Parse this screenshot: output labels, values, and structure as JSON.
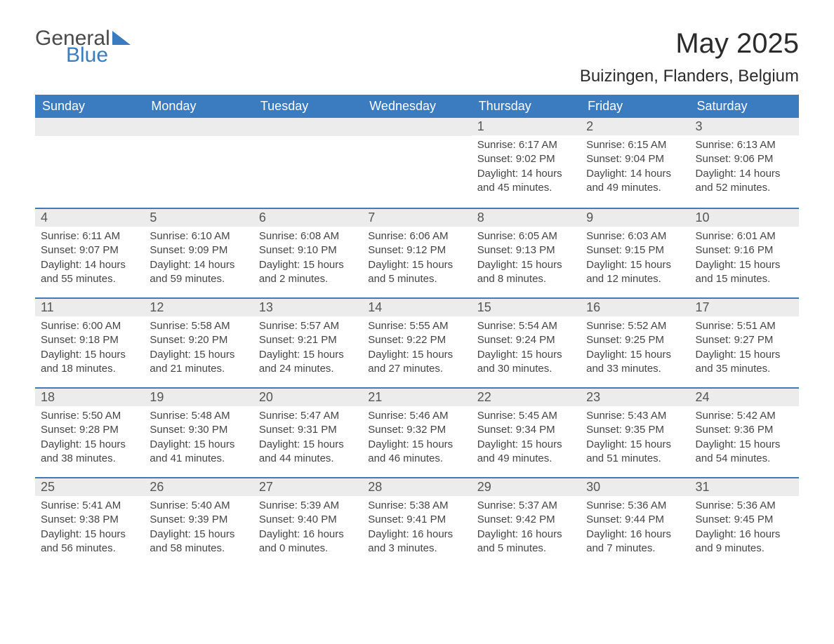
{
  "logo": {
    "text1": "General",
    "text2": "Blue",
    "color_general": "#4a4a4a",
    "color_blue": "#3b7bbf"
  },
  "title": {
    "month": "May 2025",
    "location": "Buizingen, Flanders, Belgium",
    "title_fontsize": 40,
    "location_fontsize": 24
  },
  "colors": {
    "header_bg": "#3b7bbf",
    "header_text": "#ffffff",
    "daynum_bg": "#ececec",
    "daynum_text": "#555555",
    "body_text": "#444444",
    "rule": "#3b7bbf",
    "page_bg": "#ffffff"
  },
  "typography": {
    "base_font": "Arial",
    "header_fontsize": 18,
    "daynum_fontsize": 18,
    "body_fontsize": 15
  },
  "calendar": {
    "type": "table",
    "columns": [
      "Sunday",
      "Monday",
      "Tuesday",
      "Wednesday",
      "Thursday",
      "Friday",
      "Saturday"
    ],
    "weeks": [
      [
        null,
        null,
        null,
        null,
        {
          "n": "1",
          "sunrise": "6:17 AM",
          "sunset": "9:02 PM",
          "daylight": "14 hours and 45 minutes."
        },
        {
          "n": "2",
          "sunrise": "6:15 AM",
          "sunset": "9:04 PM",
          "daylight": "14 hours and 49 minutes."
        },
        {
          "n": "3",
          "sunrise": "6:13 AM",
          "sunset": "9:06 PM",
          "daylight": "14 hours and 52 minutes."
        }
      ],
      [
        {
          "n": "4",
          "sunrise": "6:11 AM",
          "sunset": "9:07 PM",
          "daylight": "14 hours and 55 minutes."
        },
        {
          "n": "5",
          "sunrise": "6:10 AM",
          "sunset": "9:09 PM",
          "daylight": "14 hours and 59 minutes."
        },
        {
          "n": "6",
          "sunrise": "6:08 AM",
          "sunset": "9:10 PM",
          "daylight": "15 hours and 2 minutes."
        },
        {
          "n": "7",
          "sunrise": "6:06 AM",
          "sunset": "9:12 PM",
          "daylight": "15 hours and 5 minutes."
        },
        {
          "n": "8",
          "sunrise": "6:05 AM",
          "sunset": "9:13 PM",
          "daylight": "15 hours and 8 minutes."
        },
        {
          "n": "9",
          "sunrise": "6:03 AM",
          "sunset": "9:15 PM",
          "daylight": "15 hours and 12 minutes."
        },
        {
          "n": "10",
          "sunrise": "6:01 AM",
          "sunset": "9:16 PM",
          "daylight": "15 hours and 15 minutes."
        }
      ],
      [
        {
          "n": "11",
          "sunrise": "6:00 AM",
          "sunset": "9:18 PM",
          "daylight": "15 hours and 18 minutes."
        },
        {
          "n": "12",
          "sunrise": "5:58 AM",
          "sunset": "9:20 PM",
          "daylight": "15 hours and 21 minutes."
        },
        {
          "n": "13",
          "sunrise": "5:57 AM",
          "sunset": "9:21 PM",
          "daylight": "15 hours and 24 minutes."
        },
        {
          "n": "14",
          "sunrise": "5:55 AM",
          "sunset": "9:22 PM",
          "daylight": "15 hours and 27 minutes."
        },
        {
          "n": "15",
          "sunrise": "5:54 AM",
          "sunset": "9:24 PM",
          "daylight": "15 hours and 30 minutes."
        },
        {
          "n": "16",
          "sunrise": "5:52 AM",
          "sunset": "9:25 PM",
          "daylight": "15 hours and 33 minutes."
        },
        {
          "n": "17",
          "sunrise": "5:51 AM",
          "sunset": "9:27 PM",
          "daylight": "15 hours and 35 minutes."
        }
      ],
      [
        {
          "n": "18",
          "sunrise": "5:50 AM",
          "sunset": "9:28 PM",
          "daylight": "15 hours and 38 minutes."
        },
        {
          "n": "19",
          "sunrise": "5:48 AM",
          "sunset": "9:30 PM",
          "daylight": "15 hours and 41 minutes."
        },
        {
          "n": "20",
          "sunrise": "5:47 AM",
          "sunset": "9:31 PM",
          "daylight": "15 hours and 44 minutes."
        },
        {
          "n": "21",
          "sunrise": "5:46 AM",
          "sunset": "9:32 PM",
          "daylight": "15 hours and 46 minutes."
        },
        {
          "n": "22",
          "sunrise": "5:45 AM",
          "sunset": "9:34 PM",
          "daylight": "15 hours and 49 minutes."
        },
        {
          "n": "23",
          "sunrise": "5:43 AM",
          "sunset": "9:35 PM",
          "daylight": "15 hours and 51 minutes."
        },
        {
          "n": "24",
          "sunrise": "5:42 AM",
          "sunset": "9:36 PM",
          "daylight": "15 hours and 54 minutes."
        }
      ],
      [
        {
          "n": "25",
          "sunrise": "5:41 AM",
          "sunset": "9:38 PM",
          "daylight": "15 hours and 56 minutes."
        },
        {
          "n": "26",
          "sunrise": "5:40 AM",
          "sunset": "9:39 PM",
          "daylight": "15 hours and 58 minutes."
        },
        {
          "n": "27",
          "sunrise": "5:39 AM",
          "sunset": "9:40 PM",
          "daylight": "16 hours and 0 minutes."
        },
        {
          "n": "28",
          "sunrise": "5:38 AM",
          "sunset": "9:41 PM",
          "daylight": "16 hours and 3 minutes."
        },
        {
          "n": "29",
          "sunrise": "5:37 AM",
          "sunset": "9:42 PM",
          "daylight": "16 hours and 5 minutes."
        },
        {
          "n": "30",
          "sunrise": "5:36 AM",
          "sunset": "9:44 PM",
          "daylight": "16 hours and 7 minutes."
        },
        {
          "n": "31",
          "sunrise": "5:36 AM",
          "sunset": "9:45 PM",
          "daylight": "16 hours and 9 minutes."
        }
      ]
    ],
    "labels": {
      "sunrise": "Sunrise:",
      "sunset": "Sunset:",
      "daylight": "Daylight:"
    }
  }
}
